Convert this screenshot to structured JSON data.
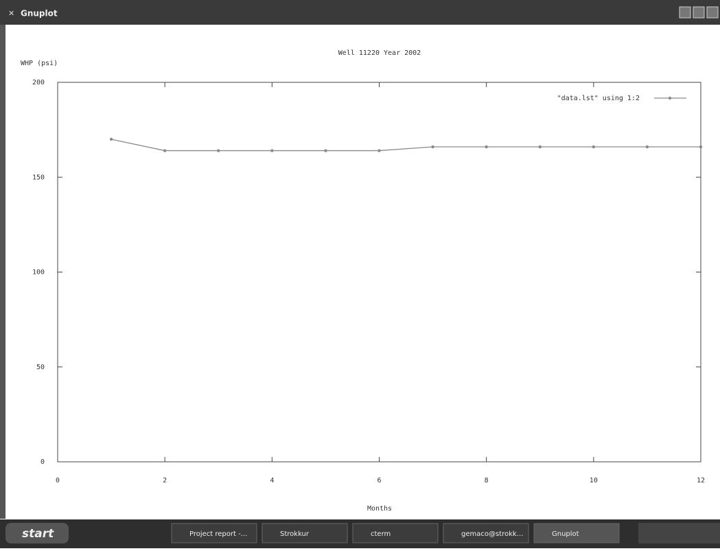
{
  "window": {
    "title": "Gnuplot"
  },
  "taskbar": {
    "start": "start",
    "items": [
      "Project report -...",
      "Strokkur",
      "cterm",
      "gemaco@strokk...",
      "Gnuplot"
    ]
  },
  "chart_data": {
    "type": "line",
    "title": "Well 11220   Year 2002",
    "x_label": "Months",
    "y_label": "WHP (psi)",
    "x": [
      1,
      2,
      3,
      4,
      5,
      6,
      7,
      8,
      9,
      10,
      11,
      12
    ],
    "series": [
      {
        "name": "\"data.lst\" using 1:2",
        "color": "#8a8a8a",
        "values": [
          170,
          164,
          164,
          164,
          164,
          164,
          166,
          166,
          166,
          166,
          166,
          166
        ]
      }
    ],
    "xlim": [
      0,
      12
    ],
    "xticks": [
      0,
      2,
      4,
      6,
      8,
      10,
      12
    ],
    "ylim": [
      0,
      200
    ],
    "yticks": [
      0,
      50,
      100,
      150,
      200
    ],
    "legend": "top-right"
  }
}
